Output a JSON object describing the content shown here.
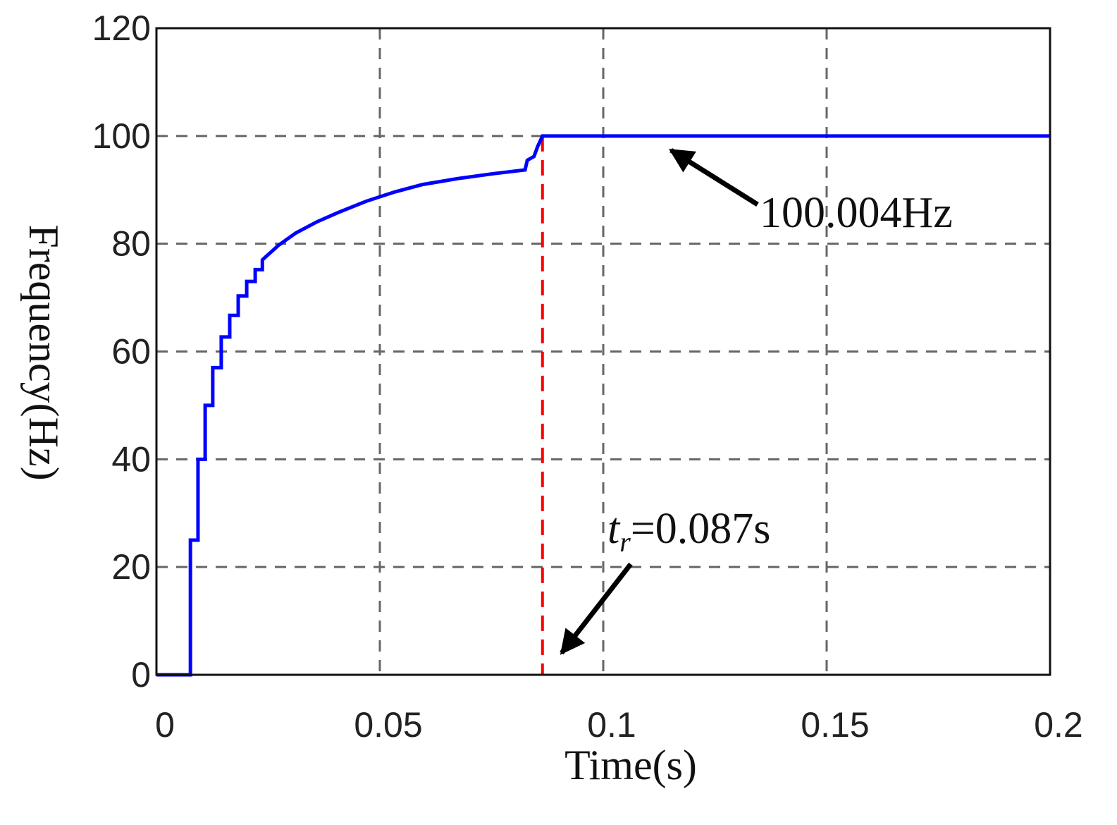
{
  "chart_data": {
    "type": "line",
    "xlabel": "Time(s)",
    "ylabel": "Frequency(Hz)",
    "x": [
      0,
      0.0076,
      0.0076,
      0.0093,
      0.0093,
      0.0109,
      0.0109,
      0.0126,
      0.0126,
      0.0145,
      0.0145,
      0.0164,
      0.0164,
      0.0183,
      0.0183,
      0.0202,
      0.0202,
      0.0221,
      0.0221,
      0.0237,
      0.0237,
      0.0273,
      0.0312,
      0.036,
      0.0407,
      0.047,
      0.0533,
      0.0596,
      0.0675,
      0.0754,
      0.0825,
      0.083,
      0.0845,
      0.0853,
      0.0864,
      0.2
    ],
    "series": [
      {
        "color": "#0000ff",
        "values": [
          0,
          0,
          25,
          25,
          40,
          40,
          50,
          50,
          57,
          57,
          62.7,
          62.7,
          66.7,
          66.7,
          70.3,
          70.3,
          73,
          73,
          75.2,
          75.2,
          77,
          79.7,
          82,
          84.1,
          85.8,
          87.9,
          89.6,
          91,
          92.1,
          93,
          93.7,
          95.5,
          96.2,
          98,
          100,
          100
        ]
      }
    ],
    "vlines": [
      {
        "x": 0.0864,
        "color": "#ff0000"
      }
    ],
    "annotations": [
      {
        "text": "100.004Hz"
      },
      {
        "text": "t",
        "sub": "r",
        "rest": "=0.087s"
      }
    ],
    "xlim": [
      0,
      0.2
    ],
    "ylim": [
      0,
      120
    ],
    "xticks": [
      0,
      0.05,
      0.1,
      0.15,
      0.2
    ],
    "yticks": [
      0,
      20,
      40,
      60,
      80,
      100,
      120
    ],
    "grid": true
  }
}
